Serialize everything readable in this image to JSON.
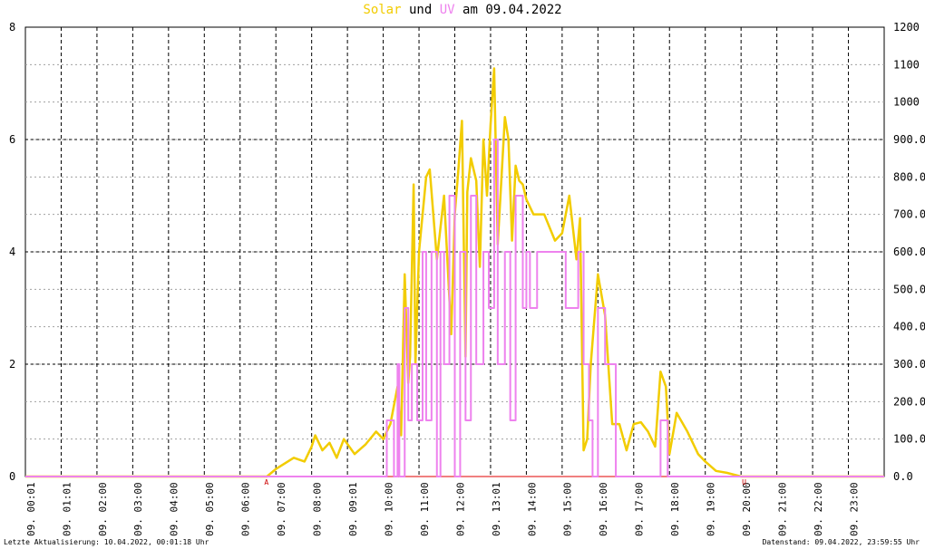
{
  "title": {
    "solar": "Solar",
    "und": "und",
    "uv": "UV",
    "am": "am",
    "date": "09.04.2022"
  },
  "footer": {
    "left": "Letzte Aktualisierung: 10.04.2022, 00:01:18 Uhr",
    "right": "Datenstand: 09.04.2022, 23:59:55 Uhr"
  },
  "colors": {
    "solar": "#f2cc00",
    "uv": "#ee82ee",
    "grid": "#000000",
    "minor_grid": "#a0a0a0",
    "marker": "#cc0000",
    "zero_line": "#f08080"
  },
  "chart_data": {
    "type": "line",
    "grid": true,
    "left_axis": {
      "series": "UV",
      "range": [
        0,
        8
      ],
      "ticks": [
        "0",
        "2",
        "4",
        "6",
        "8"
      ]
    },
    "right_axis": {
      "series": "Solar",
      "range": [
        0,
        1200
      ],
      "ticks": [
        "0.0",
        "100.0",
        "200.0",
        "300.0",
        "400.0",
        "500.0",
        "600.0",
        "700.0",
        "800.0",
        "900.0",
        "1000",
        "1100",
        "1200"
      ]
    },
    "x_axis": {
      "range_hours": [
        0,
        24
      ],
      "tick_labels": [
        "09. 00:01",
        "09. 01:01",
        "09. 02:00",
        "09. 03:00",
        "09. 04:00",
        "09. 05:00",
        "09. 06:00",
        "09. 07:00",
        "09. 08:00",
        "09. 09:01",
        "09. 10:00",
        "09. 11:00",
        "09. 12:00",
        "09. 13:01",
        "09. 14:00",
        "09. 15:00",
        "09. 16:00",
        "09. 17:00",
        "09. 18:00",
        "09. 19:00",
        "09. 20:00",
        "09. 21:00",
        "09. 22:00",
        "09. 23:00"
      ],
      "markers": [
        {
          "label": "A",
          "hour": 6.75
        },
        {
          "label": "U",
          "hour": 20.1
        }
      ]
    },
    "series": [
      {
        "name": "Solar",
        "axis": "right",
        "x": [
          0,
          6.75,
          7.0,
          7.5,
          7.8,
          8.0,
          8.1,
          8.3,
          8.5,
          8.7,
          8.9,
          9.2,
          9.5,
          9.8,
          10.0,
          10.2,
          10.4,
          10.5,
          10.6,
          10.7,
          10.75,
          10.85,
          10.9,
          11.0,
          11.1,
          11.2,
          11.3,
          11.5,
          11.7,
          11.9,
          12.0,
          12.1,
          12.2,
          12.3,
          12.35,
          12.45,
          12.6,
          12.7,
          12.8,
          12.9,
          13.0,
          13.1,
          13.2,
          13.3,
          13.4,
          13.5,
          13.6,
          13.7,
          13.8,
          13.9,
          14.0,
          14.2,
          14.5,
          14.8,
          15.0,
          15.2,
          15.4,
          15.5,
          15.6,
          15.7,
          15.8,
          16.0,
          16.2,
          16.4,
          16.6,
          16.8,
          17.0,
          17.2,
          17.4,
          17.6,
          17.75,
          17.9,
          18.0,
          18.2,
          18.5,
          18.8,
          19.0,
          19.3,
          19.6,
          20.0,
          20.1,
          24
        ],
        "values": [
          0,
          0,
          20,
          50,
          40,
          80,
          110,
          70,
          90,
          50,
          100,
          60,
          85,
          120,
          100,
          140,
          240,
          110,
          540,
          250,
          320,
          780,
          300,
          600,
          700,
          800,
          820,
          580,
          750,
          380,
          700,
          820,
          950,
          320,
          760,
          850,
          790,
          560,
          900,
          750,
          940,
          1090,
          620,
          790,
          960,
          900,
          630,
          830,
          790,
          780,
          740,
          700,
          700,
          630,
          650,
          750,
          580,
          690,
          70,
          100,
          300,
          540,
          430,
          140,
          140,
          70,
          140,
          145,
          120,
          80,
          280,
          240,
          60,
          170,
          120,
          60,
          40,
          15,
          10,
          0,
          0,
          0
        ]
      },
      {
        "name": "UV",
        "axis": "left",
        "step": true,
        "x": [
          0,
          10.0,
          10.1,
          10.3,
          10.4,
          10.45,
          10.6,
          10.7,
          10.8,
          10.95,
          11.1,
          11.2,
          11.35,
          11.5,
          11.6,
          11.7,
          11.85,
          12.0,
          12.15,
          12.3,
          12.45,
          12.6,
          12.8,
          12.95,
          13.1,
          13.2,
          13.4,
          13.55,
          13.7,
          13.9,
          14.0,
          14.1,
          14.3,
          14.5,
          14.7,
          14.9,
          15.1,
          15.25,
          15.45,
          15.6,
          15.75,
          15.85,
          16.0,
          16.2,
          16.5,
          16.8,
          17.2,
          17.75,
          17.95,
          18.1,
          18.3,
          19.0,
          20.0,
          24
        ],
        "values": [
          0,
          0,
          1,
          0,
          2,
          0,
          3,
          1,
          2,
          1,
          4,
          1,
          4,
          0,
          4,
          2,
          5,
          0,
          4,
          1,
          5,
          2,
          4,
          3,
          6,
          2,
          4,
          1,
          5,
          3,
          4,
          3,
          4,
          4,
          4,
          4,
          3,
          3,
          4,
          2,
          1,
          0,
          3,
          2,
          0,
          0,
          0,
          1,
          0,
          0,
          0,
          0,
          0,
          0
        ]
      }
    ]
  }
}
